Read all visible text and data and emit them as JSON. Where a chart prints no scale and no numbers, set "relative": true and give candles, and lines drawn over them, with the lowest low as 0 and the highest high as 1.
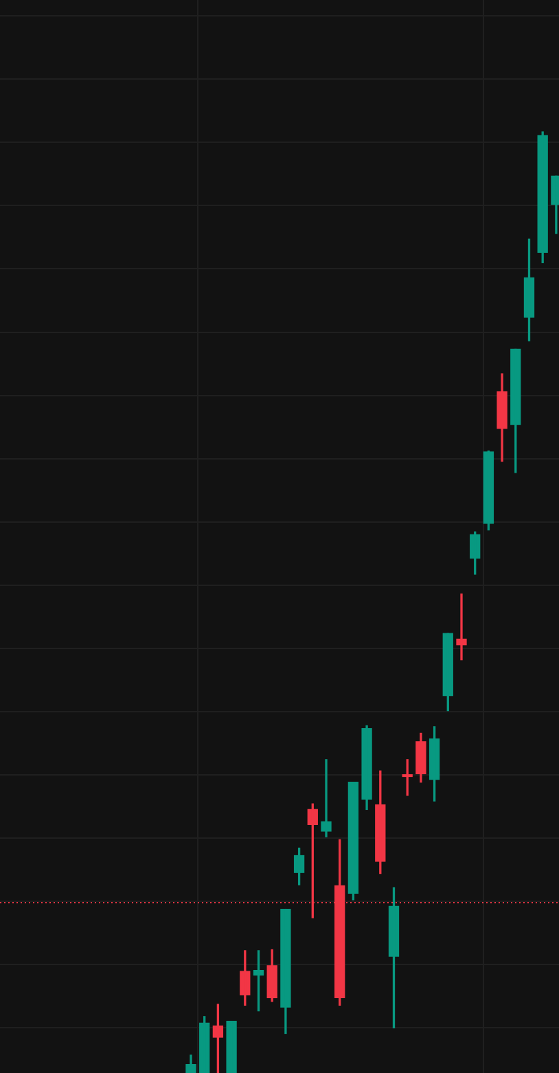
{
  "chart_data": {
    "type": "candlestick",
    "relative": true,
    "grid": true,
    "legend": false,
    "categories": [
      null,
      null,
      null,
      null,
      null,
      null,
      null,
      null,
      null,
      null,
      null,
      null,
      null,
      null,
      null,
      null,
      null,
      null,
      null,
      null,
      null,
      null,
      null,
      null,
      null,
      null,
      null,
      null
    ],
    "ohlc": [
      [
        0,
        0.019,
        0,
        0.009
      ],
      [
        0,
        0.06,
        0,
        0.053
      ],
      [
        0.05,
        0.073,
        0,
        0.038
      ],
      [
        0,
        0.055,
        0,
        0.055
      ],
      [
        0.108,
        0.13,
        0.072,
        0.083
      ],
      [
        0.104,
        0.13,
        0.066,
        0.109
      ],
      [
        0.114,
        0.131,
        0.076,
        0.08
      ],
      [
        0.07,
        0.174,
        0.042,
        0.174
      ],
      [
        0.213,
        0.239,
        0.2,
        0.231
      ],
      [
        0.28,
        0.286,
        0.165,
        0.264
      ],
      [
        0.257,
        0.333,
        0.251,
        0.267
      ],
      [
        0.199,
        0.248,
        0.072,
        0.08
      ],
      [
        0.191,
        0.309,
        0.184,
        0.309
      ],
      [
        0.291,
        0.369,
        0.28,
        0.366
      ],
      [
        0.285,
        0.321,
        0.212,
        0.225
      ],
      [
        0.124,
        0.197,
        0.048,
        0.177
      ],
      [
        0.317,
        0.333,
        0.295,
        0.315
      ],
      [
        0.352,
        0.361,
        0.309,
        0.318
      ],
      [
        0.312,
        0.368,
        0.289,
        0.355
      ],
      [
        0.401,
        0.467,
        0.385,
        0.467
      ],
      [
        0.461,
        0.509,
        0.439,
        0.455
      ],
      [
        0.547,
        0.575,
        0.53,
        0.572
      ],
      [
        0.584,
        0.661,
        0.577,
        0.66
      ],
      [
        0.724,
        0.743,
        0.65,
        0.685
      ],
      [
        0.689,
        0.769,
        0.638,
        0.769
      ],
      [
        0.803,
        0.886,
        0.778,
        0.845
      ],
      [
        0.872,
        1,
        0.861,
        0.996
      ],
      [
        0.923,
        0.953,
        0.892,
        0.953
      ]
    ],
    "colors": [
      "#089981",
      "#089981",
      "#f23645",
      "#089981",
      "#f23645",
      "#089981",
      "#f23645",
      "#089981",
      "#089981",
      "#f23645",
      "#089981",
      "#f23645",
      "#089981",
      "#089981",
      "#f23645",
      "#089981",
      "#f23645",
      "#f23645",
      "#089981",
      "#089981",
      "#f23645",
      "#089981",
      "#089981",
      "#f23645",
      "#089981",
      "#089981",
      "#089981",
      "#089981"
    ],
    "ref_lines": [
      {
        "axis": "y",
        "value": 0.181,
        "color": "#f23645",
        "line_style": "dotted"
      }
    ]
  }
}
